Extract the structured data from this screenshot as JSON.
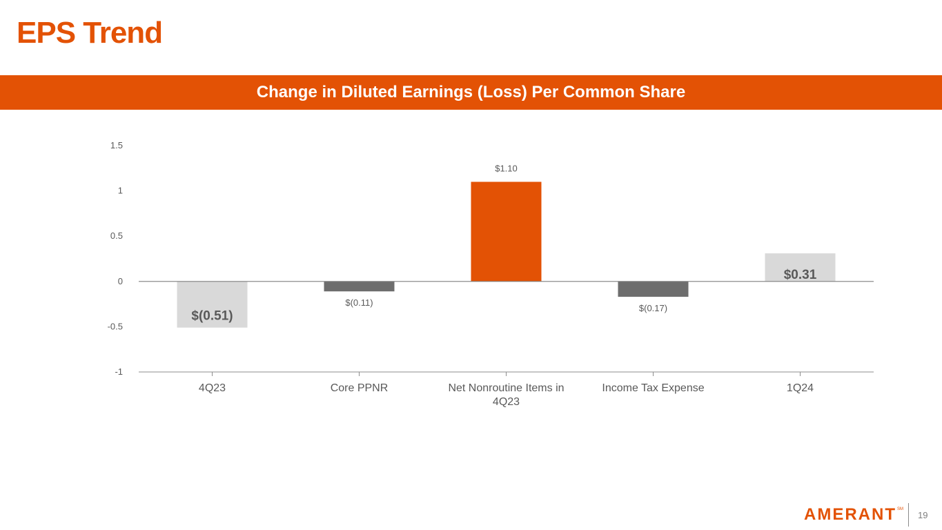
{
  "slide": {
    "title": "EPS Trend",
    "banner": "Change in Diluted Earnings (Loss) Per Common Share",
    "page_number": "19"
  },
  "logo": {
    "text": "AMERANT",
    "mark": "SM"
  },
  "colors": {
    "accent": "#e35205",
    "bar_light": "#d9d9d9",
    "bar_dark": "#6d6d6d",
    "axis": "#8c8c8c",
    "label": "#595959",
    "tick_text": "#595959"
  },
  "chart_data": {
    "type": "bar",
    "title": "Change in Diluted Earnings (Loss) Per Common Share",
    "xlabel": "",
    "ylabel": "",
    "ylim": [
      -1,
      1.5
    ],
    "yticks": [
      {
        "value": -1,
        "label": "-1"
      },
      {
        "value": -0.5,
        "label": "-0.5"
      },
      {
        "value": 0,
        "label": "0"
      },
      {
        "value": 0.5,
        "label": "0.5"
      },
      {
        "value": 1,
        "label": "1"
      },
      {
        "value": 1.5,
        "label": "1.5"
      }
    ],
    "grid": false,
    "categories": [
      [
        "4Q23"
      ],
      [
        "Core PPNR"
      ],
      [
        "Net Nonroutine Items in",
        "4Q23"
      ],
      [
        "Income Tax Expense"
      ],
      [
        "1Q24"
      ]
    ],
    "values": [
      -0.51,
      -0.11,
      1.1,
      -0.17,
      0.31
    ],
    "data_labels": [
      "$(0.51)",
      "$(0.11)",
      "$1.10",
      "$(0.17)",
      "$0.31"
    ],
    "bar_styles": [
      "total",
      "decrease",
      "increase",
      "decrease",
      "total"
    ]
  }
}
